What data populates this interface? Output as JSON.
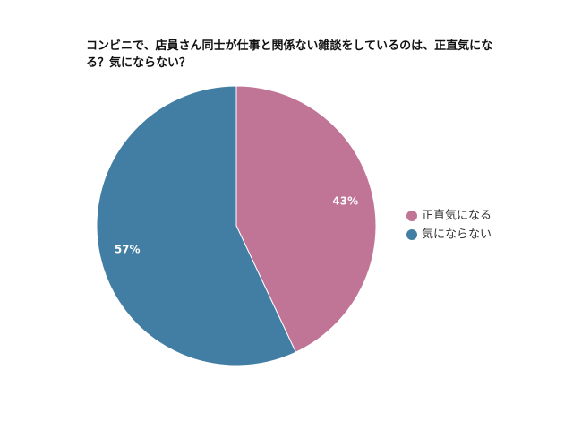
{
  "chart_data": {
    "type": "pie",
    "title": "コンビニで、店員さん同士が仕事と関係ない雑談をしているのは、正直気になる？気にならない？",
    "categories": [
      "正直気になる",
      "気にならない"
    ],
    "values": [
      43,
      57
    ],
    "value_labels": [
      "43%",
      "57%"
    ],
    "colors": [
      "#c07496",
      "#427ea3"
    ],
    "legend": "right"
  }
}
